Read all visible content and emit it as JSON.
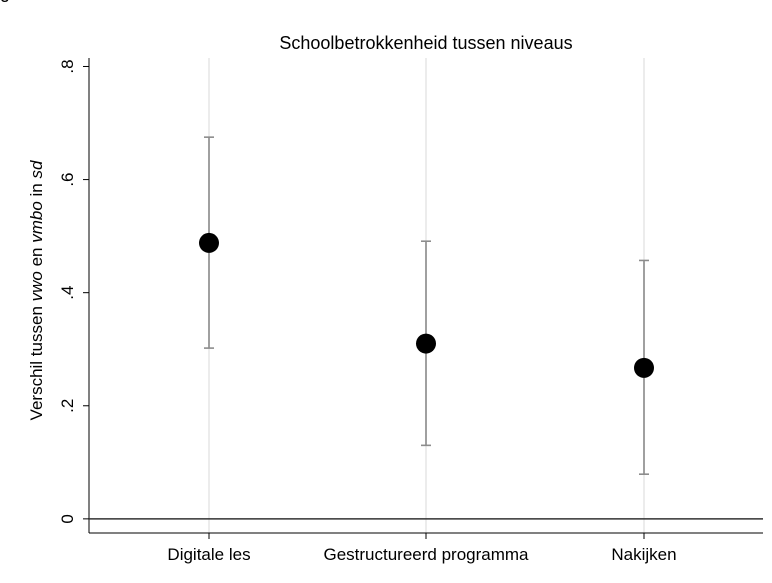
{
  "chart_data": {
    "type": "scatter",
    "title": "Schoolbetrokkenheid tussen niveaus",
    "ylabel_parts": [
      "Verschil tussen ",
      "vwo",
      " en ",
      "vmbo",
      " in ",
      "sd"
    ],
    "categories": [
      "Digitale les",
      "Gestructureerd programma",
      "Nakijken"
    ],
    "series": [
      {
        "values": [
          0.488,
          0.31,
          0.267
        ],
        "ci_lower": [
          0.302,
          0.13,
          0.079
        ],
        "ci_upper": [
          0.675,
          0.491,
          0.457
        ]
      }
    ],
    "yticks": [
      0,
      0.2,
      0.4,
      0.6,
      0.8
    ],
    "ytick_labels": [
      "0",
      ".2",
      ".4",
      ".6",
      ".8"
    ],
    "ylim": [
      -0.025,
      0.815
    ],
    "grid": true,
    "colors": {
      "point": "#000000",
      "ci": "#8c8c8c",
      "grid": "#e6e6e6",
      "axis": "#000000",
      "reference_line": "#333333"
    }
  },
  "page": {
    "top_clipped_text": "g"
  }
}
